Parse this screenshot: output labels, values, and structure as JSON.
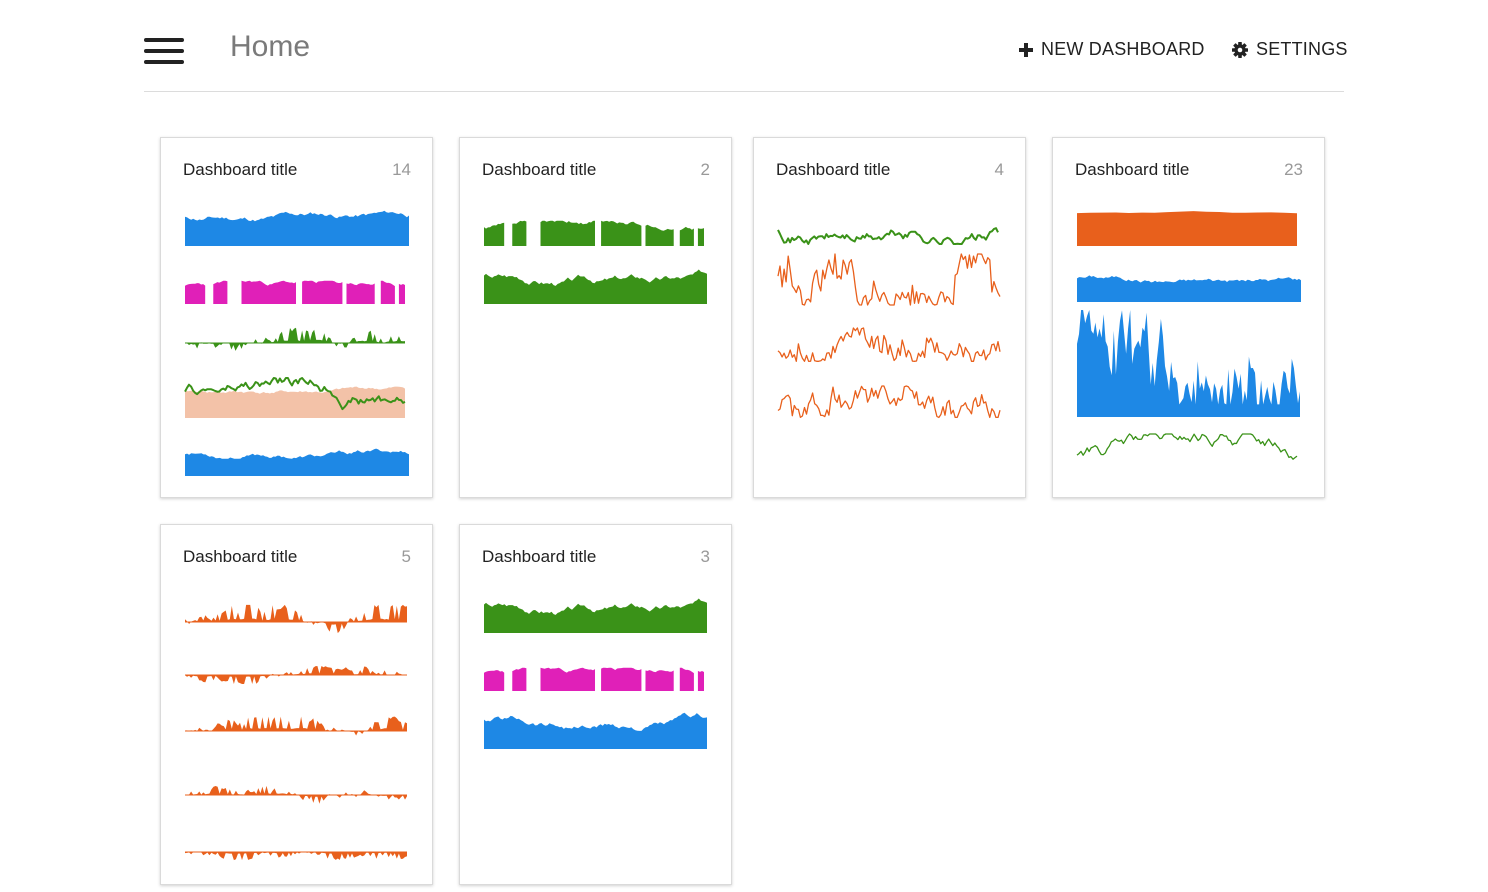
{
  "header": {
    "title": "Home",
    "new_dashboard_label": "NEW DASHBOARD",
    "settings_label": "SETTINGS",
    "icons": {
      "menu": "hamburger-menu-icon",
      "add": "plus-icon",
      "settings": "gear-icon"
    }
  },
  "colors": {
    "blue": "#1e88e5",
    "magenta": "#e020b8",
    "green": "#3a9218",
    "orange": "#e8601c",
    "peach": "#f3c2a8"
  },
  "dashboards": [
    {
      "title": "Dashboard title",
      "count": "14"
    },
    {
      "title": "Dashboard title",
      "count": "2"
    },
    {
      "title": "Dashboard title",
      "count": "4"
    },
    {
      "title": "Dashboard title",
      "count": "23"
    },
    {
      "title": "Dashboard title",
      "count": "5"
    },
    {
      "title": "Dashboard title",
      "count": "3"
    }
  ]
}
